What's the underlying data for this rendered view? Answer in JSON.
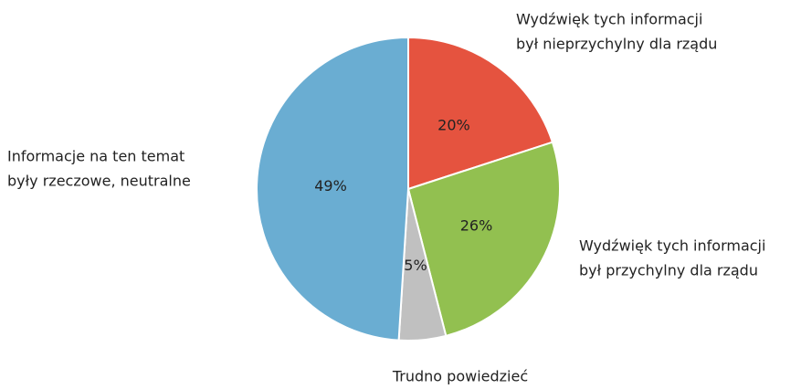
{
  "chart_data": {
    "type": "pie",
    "categories": [
      [
        "Wydźwięk tych informacji",
        "był nieprzychylny dla rządu"
      ],
      [
        "Wydźwięk tych informacji",
        "był przychylny dla rządu"
      ],
      [
        "Trudno powiedzieć"
      ],
      [
        "Informacje na ten temat",
        "były rzeczowe, neutralne"
      ]
    ],
    "values": [
      20,
      26,
      5,
      49
    ],
    "value_labels": [
      "20%",
      "26%",
      "5%",
      "49%"
    ],
    "colors": [
      "#e5533f",
      "#92c050",
      "#c0c0c0",
      "#6aadd2"
    ]
  }
}
